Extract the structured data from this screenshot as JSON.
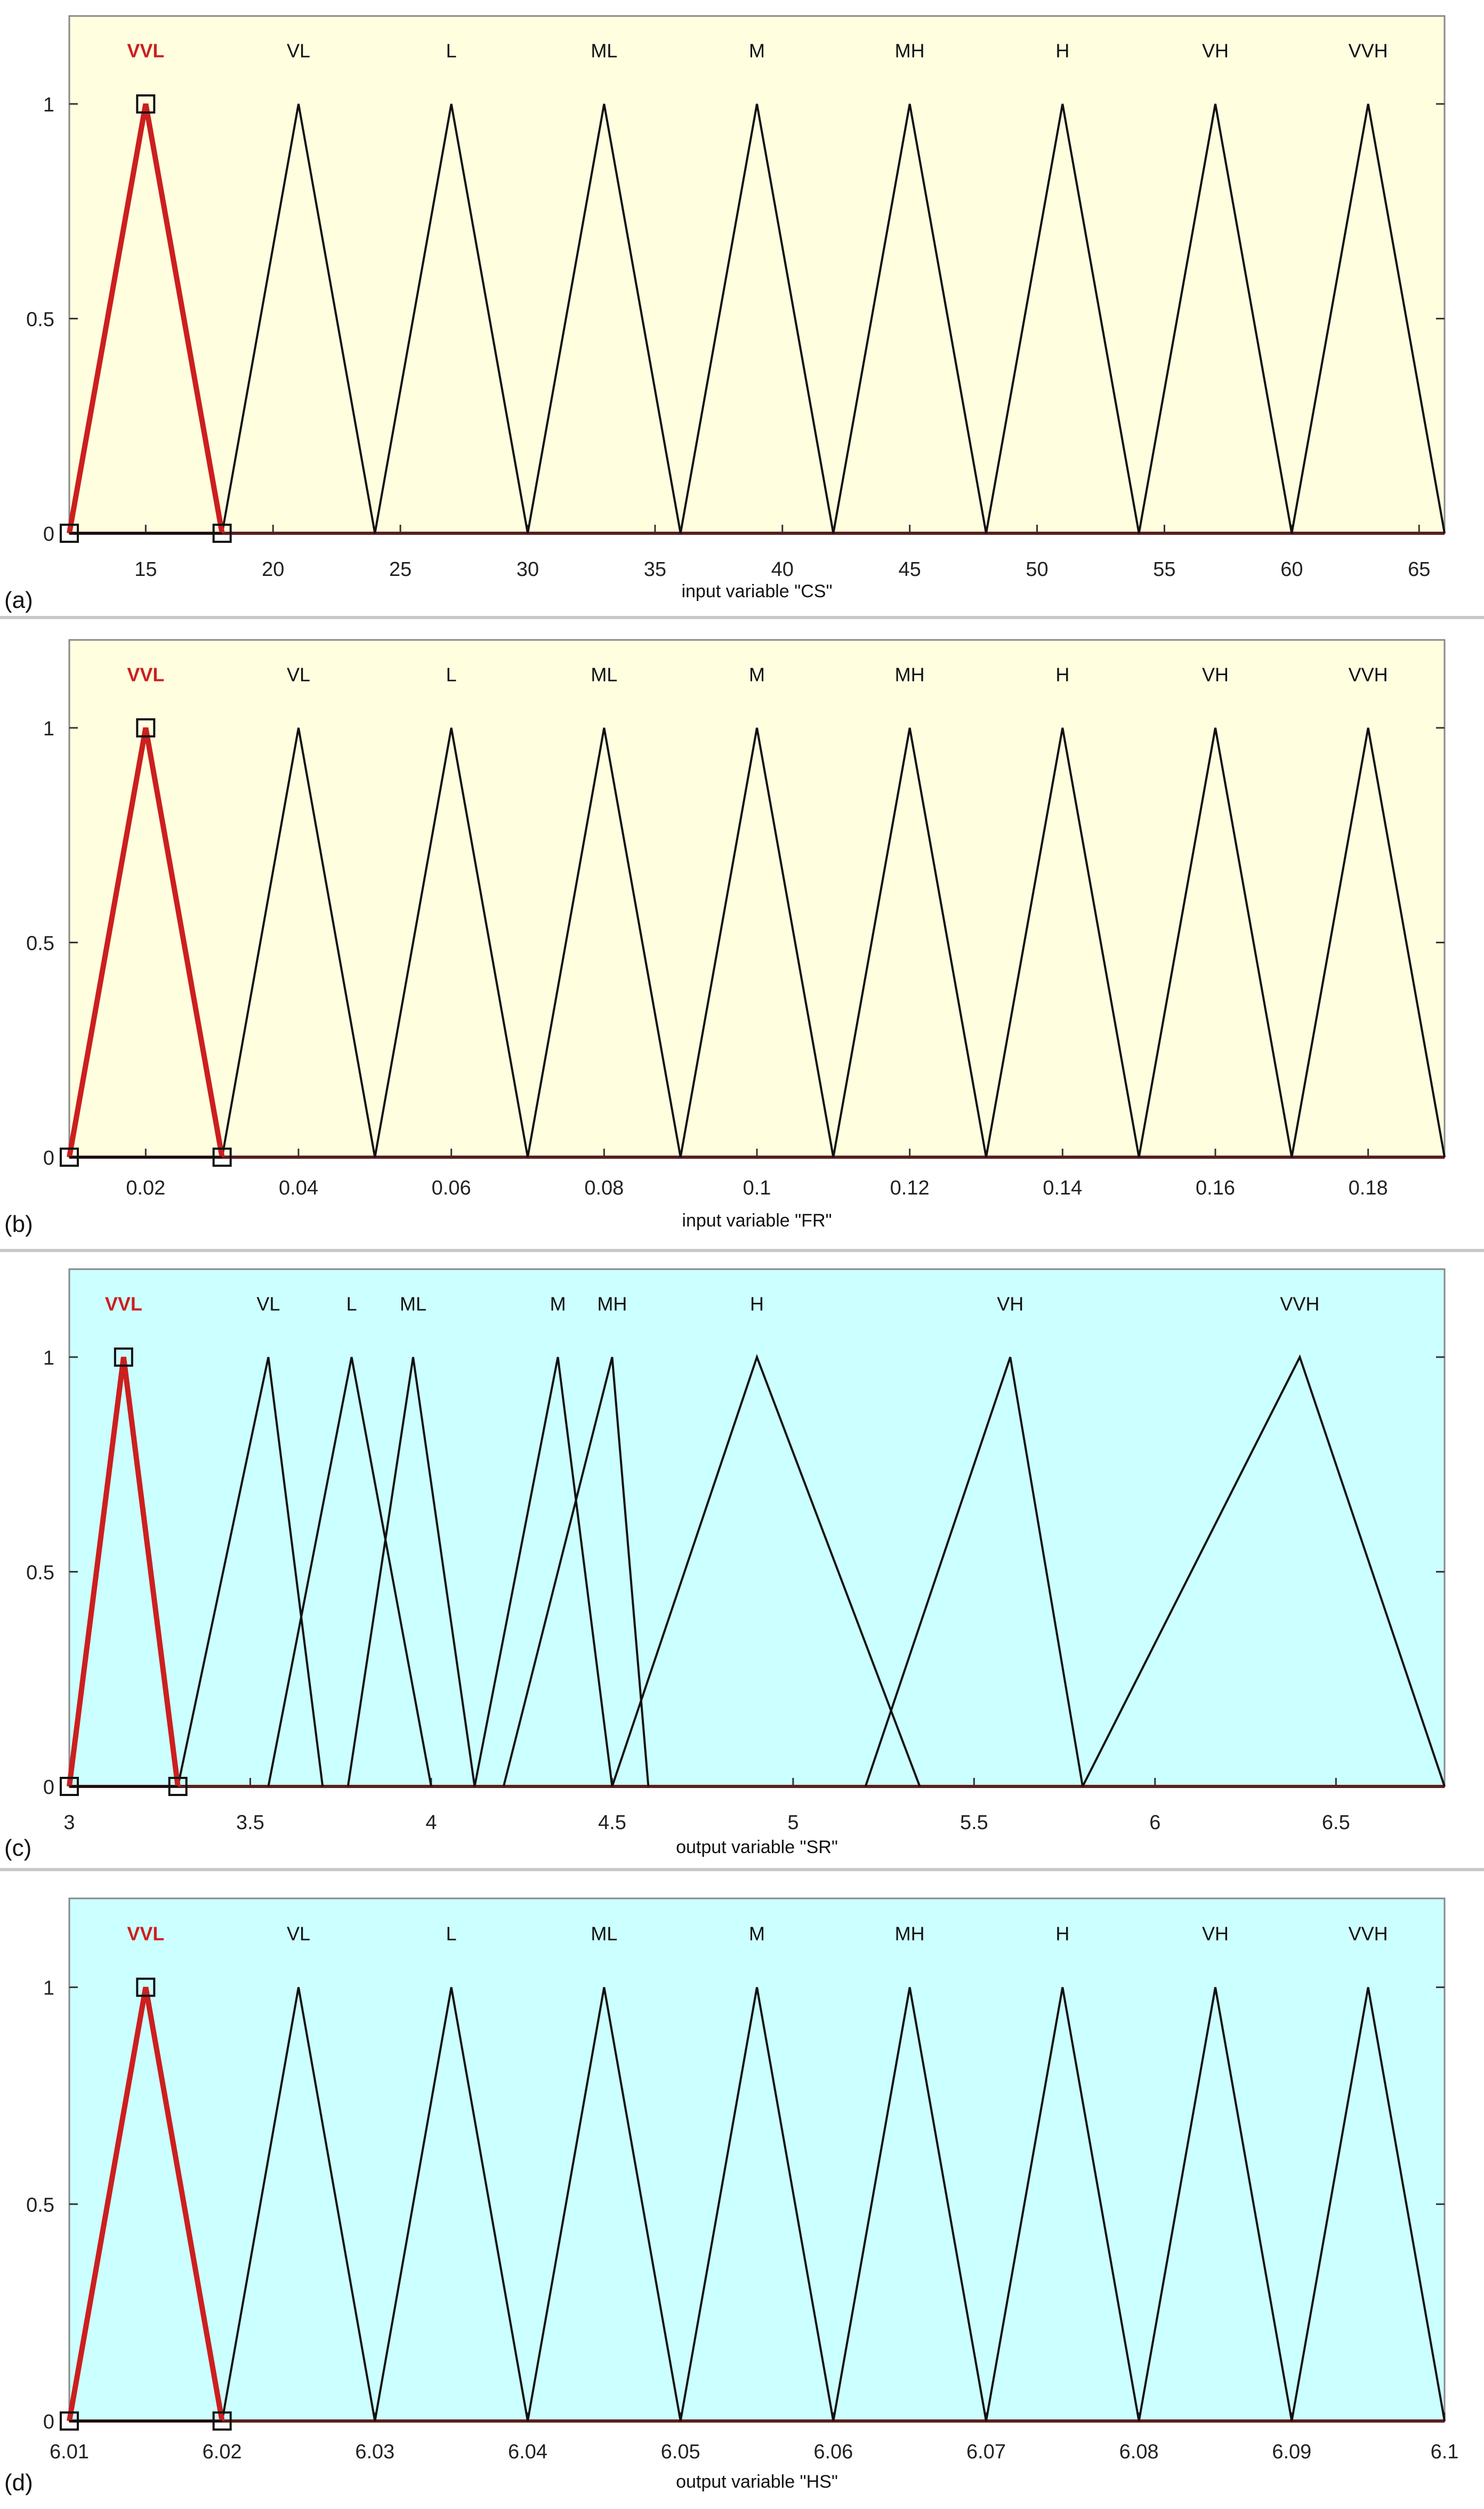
{
  "panels": [
    {
      "id": "a",
      "panel_label": "(a)",
      "xlabel": "input variable \"CS\"",
      "background": "#ffffe0",
      "chart_data": {
        "type": "line",
        "xlim": [
          12,
          66
        ],
        "ylim": [
          0,
          1
        ],
        "x_ticks": [
          "15",
          "20",
          "25",
          "30",
          "35",
          "40",
          "45",
          "50",
          "55",
          "60",
          "65"
        ],
        "x_tick_values": [
          15,
          20,
          25,
          30,
          35,
          40,
          45,
          50,
          55,
          60,
          65
        ],
        "y_ticks": [
          "0",
          "0.5",
          "1"
        ],
        "y_tick_values": [
          0,
          0.5,
          1
        ],
        "grid": false,
        "series": [
          {
            "name": "VVL",
            "params": [
              12,
              15,
              18
            ],
            "selected": true
          },
          {
            "name": "VL",
            "params": [
              18,
              21,
              24
            ]
          },
          {
            "name": "L",
            "params": [
              24,
              27,
              30
            ]
          },
          {
            "name": "ML",
            "params": [
              30,
              33,
              36
            ]
          },
          {
            "name": "M",
            "params": [
              36,
              39,
              42
            ]
          },
          {
            "name": "MH",
            "params": [
              42,
              45,
              48
            ]
          },
          {
            "name": "H",
            "params": [
              48,
              51,
              54
            ]
          },
          {
            "name": "VH",
            "params": [
              54,
              57,
              60
            ]
          },
          {
            "name": "VVH",
            "params": [
              60,
              63,
              66
            ]
          }
        ]
      }
    },
    {
      "id": "b",
      "panel_label": "(b)",
      "xlabel": "input variable \"FR\"",
      "background": "#ffffe0",
      "chart_data": {
        "type": "line",
        "xlim": [
          0.01,
          0.19
        ],
        "ylim": [
          0,
          1
        ],
        "x_ticks": [
          "0.02",
          "0.04",
          "0.06",
          "0.08",
          "0.1",
          "0.12",
          "0.14",
          "0.16",
          "0.18"
        ],
        "x_tick_values": [
          0.02,
          0.04,
          0.06,
          0.08,
          0.1,
          0.12,
          0.14,
          0.16,
          0.18
        ],
        "y_ticks": [
          "0",
          "0.5",
          "1"
        ],
        "y_tick_values": [
          0,
          0.5,
          1
        ],
        "grid": false,
        "series": [
          {
            "name": "VVL",
            "params": [
              0.01,
              0.02,
              0.03
            ],
            "selected": true
          },
          {
            "name": "VL",
            "params": [
              0.03,
              0.04,
              0.05
            ]
          },
          {
            "name": "L",
            "params": [
              0.05,
              0.06,
              0.07
            ]
          },
          {
            "name": "ML",
            "params": [
              0.07,
              0.08,
              0.09
            ]
          },
          {
            "name": "M",
            "params": [
              0.09,
              0.1,
              0.11
            ]
          },
          {
            "name": "MH",
            "params": [
              0.11,
              0.12,
              0.13
            ]
          },
          {
            "name": "H",
            "params": [
              0.13,
              0.14,
              0.15
            ]
          },
          {
            "name": "VH",
            "params": [
              0.15,
              0.16,
              0.17
            ]
          },
          {
            "name": "VVH",
            "params": [
              0.17,
              0.18,
              0.19
            ]
          }
        ]
      }
    },
    {
      "id": "c",
      "panel_label": "(c)",
      "xlabel": "output variable \"SR\"",
      "background": "#ccffff",
      "chart_data": {
        "type": "line",
        "xlim": [
          3,
          6.8
        ],
        "ylim": [
          0,
          1
        ],
        "x_ticks": [
          "3",
          "3.5",
          "4",
          "4.5",
          "5",
          "5.5",
          "6",
          "6.5"
        ],
        "x_tick_values": [
          3,
          3.5,
          4,
          4.5,
          5,
          5.5,
          6,
          6.5
        ],
        "y_ticks": [
          "0",
          "0.5",
          "1"
        ],
        "y_tick_values": [
          0,
          0.5,
          1
        ],
        "grid": false,
        "series": [
          {
            "name": "VVL",
            "params": [
              3.0,
              3.15,
              3.3
            ],
            "selected": true
          },
          {
            "name": "VL",
            "params": [
              3.3,
              3.55,
              3.7
            ]
          },
          {
            "name": "L",
            "params": [
              3.55,
              3.78,
              4.0
            ]
          },
          {
            "name": "ML",
            "params": [
              3.77,
              3.95,
              4.12
            ]
          },
          {
            "name": "M",
            "params": [
              4.12,
              4.35,
              4.5
            ]
          },
          {
            "name": "MH",
            "params": [
              4.2,
              4.5,
              4.6
            ]
          },
          {
            "name": "H",
            "params": [
              4.5,
              4.9,
              5.35
            ]
          },
          {
            "name": "VH",
            "params": [
              5.2,
              5.6,
              5.8
            ]
          },
          {
            "name": "VVH",
            "params": [
              5.8,
              6.4,
              6.8
            ]
          }
        ]
      }
    },
    {
      "id": "d",
      "panel_label": "(d)",
      "xlabel": "output variable \"HS\"",
      "background": "#ccffff",
      "chart_data": {
        "type": "line",
        "xlim": [
          6.01,
          6.1
        ],
        "ylim": [
          0,
          1
        ],
        "x_ticks": [
          "6.01",
          "6.02",
          "6.03",
          "6.04",
          "6.05",
          "6.06",
          "6.07",
          "6.08",
          "6.09",
          "6.1"
        ],
        "x_tick_values": [
          6.01,
          6.02,
          6.03,
          6.04,
          6.05,
          6.06,
          6.07,
          6.08,
          6.09,
          6.1
        ],
        "y_ticks": [
          "0",
          "0.5",
          "1"
        ],
        "y_tick_values": [
          0,
          0.5,
          1
        ],
        "grid": false,
        "series": [
          {
            "name": "VVL",
            "params": [
              6.01,
              6.015,
              6.02
            ],
            "selected": true
          },
          {
            "name": "VL",
            "params": [
              6.02,
              6.025,
              6.03
            ]
          },
          {
            "name": "L",
            "params": [
              6.03,
              6.035,
              6.04
            ]
          },
          {
            "name": "ML",
            "params": [
              6.04,
              6.045,
              6.05
            ]
          },
          {
            "name": "M",
            "params": [
              6.05,
              6.055,
              6.06
            ]
          },
          {
            "name": "MH",
            "params": [
              6.06,
              6.065,
              6.07
            ]
          },
          {
            "name": "H",
            "params": [
              6.07,
              6.075,
              6.08
            ]
          },
          {
            "name": "VH",
            "params": [
              6.08,
              6.085,
              6.09
            ]
          },
          {
            "name": "VVH",
            "params": [
              6.09,
              6.095,
              6.1
            ]
          }
        ]
      }
    }
  ],
  "colors": {
    "selected": "#cc1f1f",
    "normal": "#111111",
    "axis": "#333333",
    "tick_label": "#222222"
  }
}
